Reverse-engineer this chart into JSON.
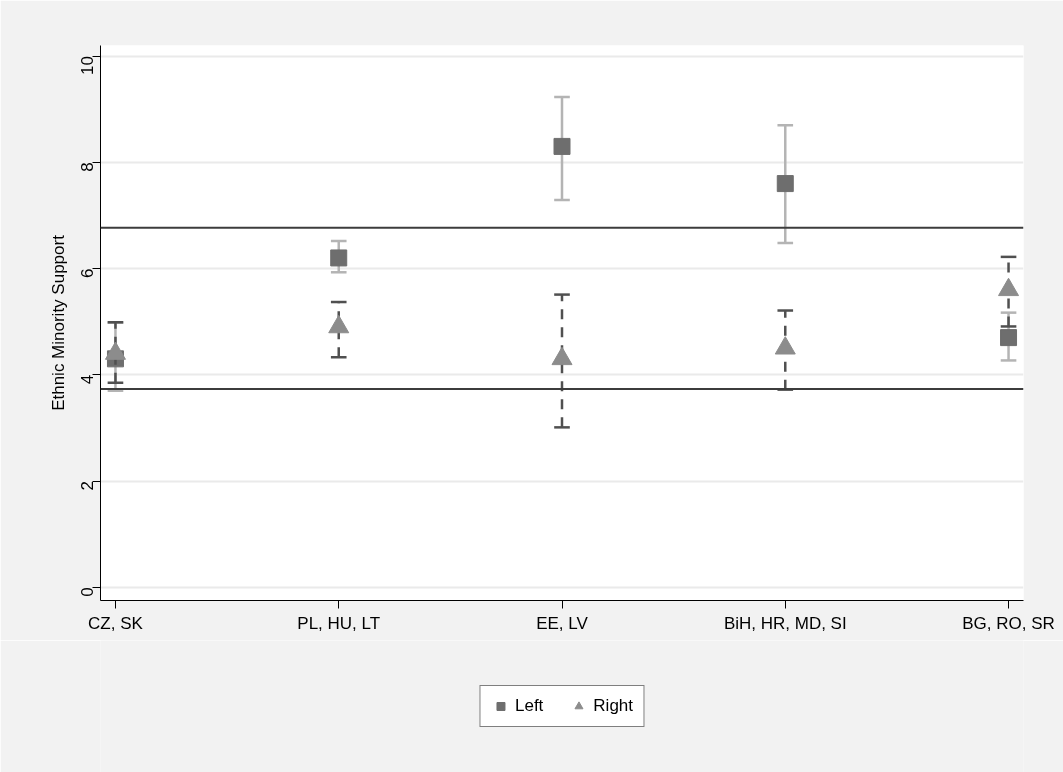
{
  "chart_data": {
    "type": "scatter",
    "ylabel": "Ethnic Minority Support",
    "categories": [
      "CZ, SK",
      "PL, HU, LT",
      "EE, LV",
      "BiH, HR, MD, SI",
      "BG, RO, SR"
    ],
    "series": [
      {
        "name": "Left",
        "color": "#6e6e6e",
        "marker": "square",
        "line_style": "solid",
        "values": [
          4.3,
          6.2,
          8.3,
          7.6,
          4.7
        ],
        "errors": [
          [
            3.7,
            4.98
          ],
          [
            5.93,
            6.52
          ],
          [
            7.29,
            9.23
          ],
          [
            6.48,
            8.7
          ],
          [
            4.27,
            5.17
          ]
        ]
      },
      {
        "name": "Right",
        "color": "#8c8c8c",
        "marker": "triangle",
        "line_style": "dashed",
        "values": [
          4.4,
          4.9,
          4.3,
          4.5,
          5.6
        ],
        "errors": [
          [
            3.85,
            4.99
          ],
          [
            4.33,
            5.37
          ],
          [
            3.01,
            5.51
          ],
          [
            3.72,
            5.21
          ],
          [
            4.91,
            6.22
          ]
        ]
      }
    ],
    "ylim": [
      -0.25,
      10.2
    ],
    "yticks": [
      0,
      2,
      4,
      6,
      8,
      10
    ],
    "ref_lines": [
      {
        "axis": "y",
        "value": 6.77,
        "color": "#3c3c3c"
      },
      {
        "axis": "y",
        "value": 3.73,
        "color": "#3c3c3c"
      }
    ],
    "grid": "y",
    "legend": "bottom"
  }
}
